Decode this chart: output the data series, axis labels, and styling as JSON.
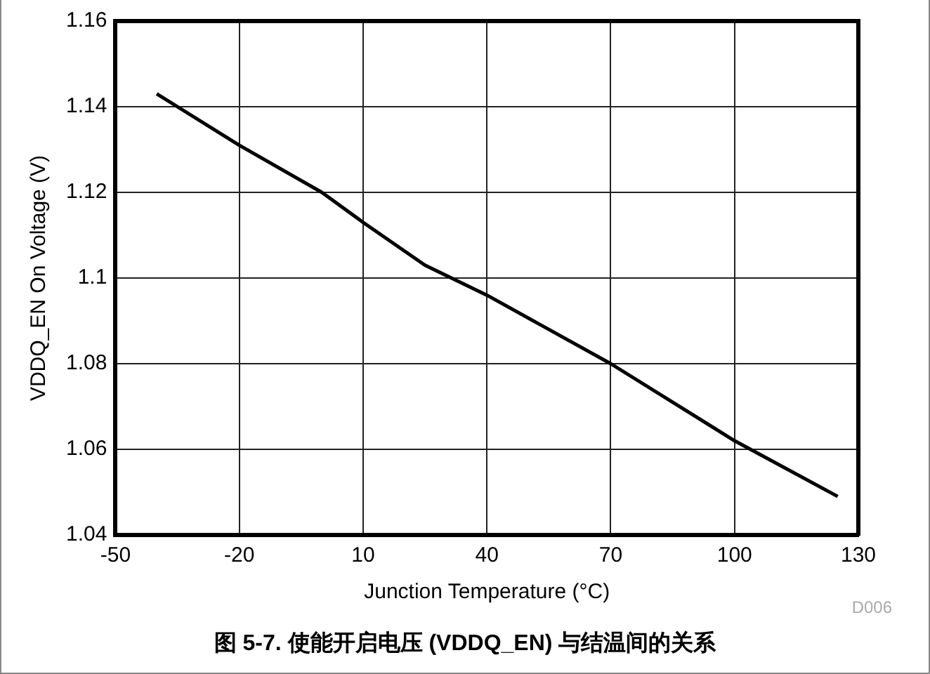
{
  "chart_data": {
    "type": "line",
    "title": "图 5-7. 使能开启电压 (VDDQ_EN) 与结温间的关系",
    "xlabel": "Junction Temperature (°C)",
    "ylabel": "VDDQ_EN On Voltage (V)",
    "annotations": [
      "D006"
    ],
    "x": [
      -40,
      -20,
      0,
      10,
      25,
      40,
      70,
      100,
      125
    ],
    "series": [
      {
        "color": "#000000",
        "values": [
          1.143,
          1.131,
          1.12,
          1.113,
          1.103,
          1.096,
          1.08,
          1.062,
          1.049
        ]
      }
    ],
    "xlim": [
      -50,
      130
    ],
    "xticks": [
      -50,
      -20,
      10,
      40,
      70,
      100,
      130
    ],
    "ylim": [
      1.04,
      1.16
    ],
    "yticks": [
      1.04,
      1.06,
      1.08,
      1.1,
      1.12,
      1.14,
      1.16
    ],
    "grid": true,
    "legend": false,
    "marker": "none",
    "line_style": "solid"
  }
}
